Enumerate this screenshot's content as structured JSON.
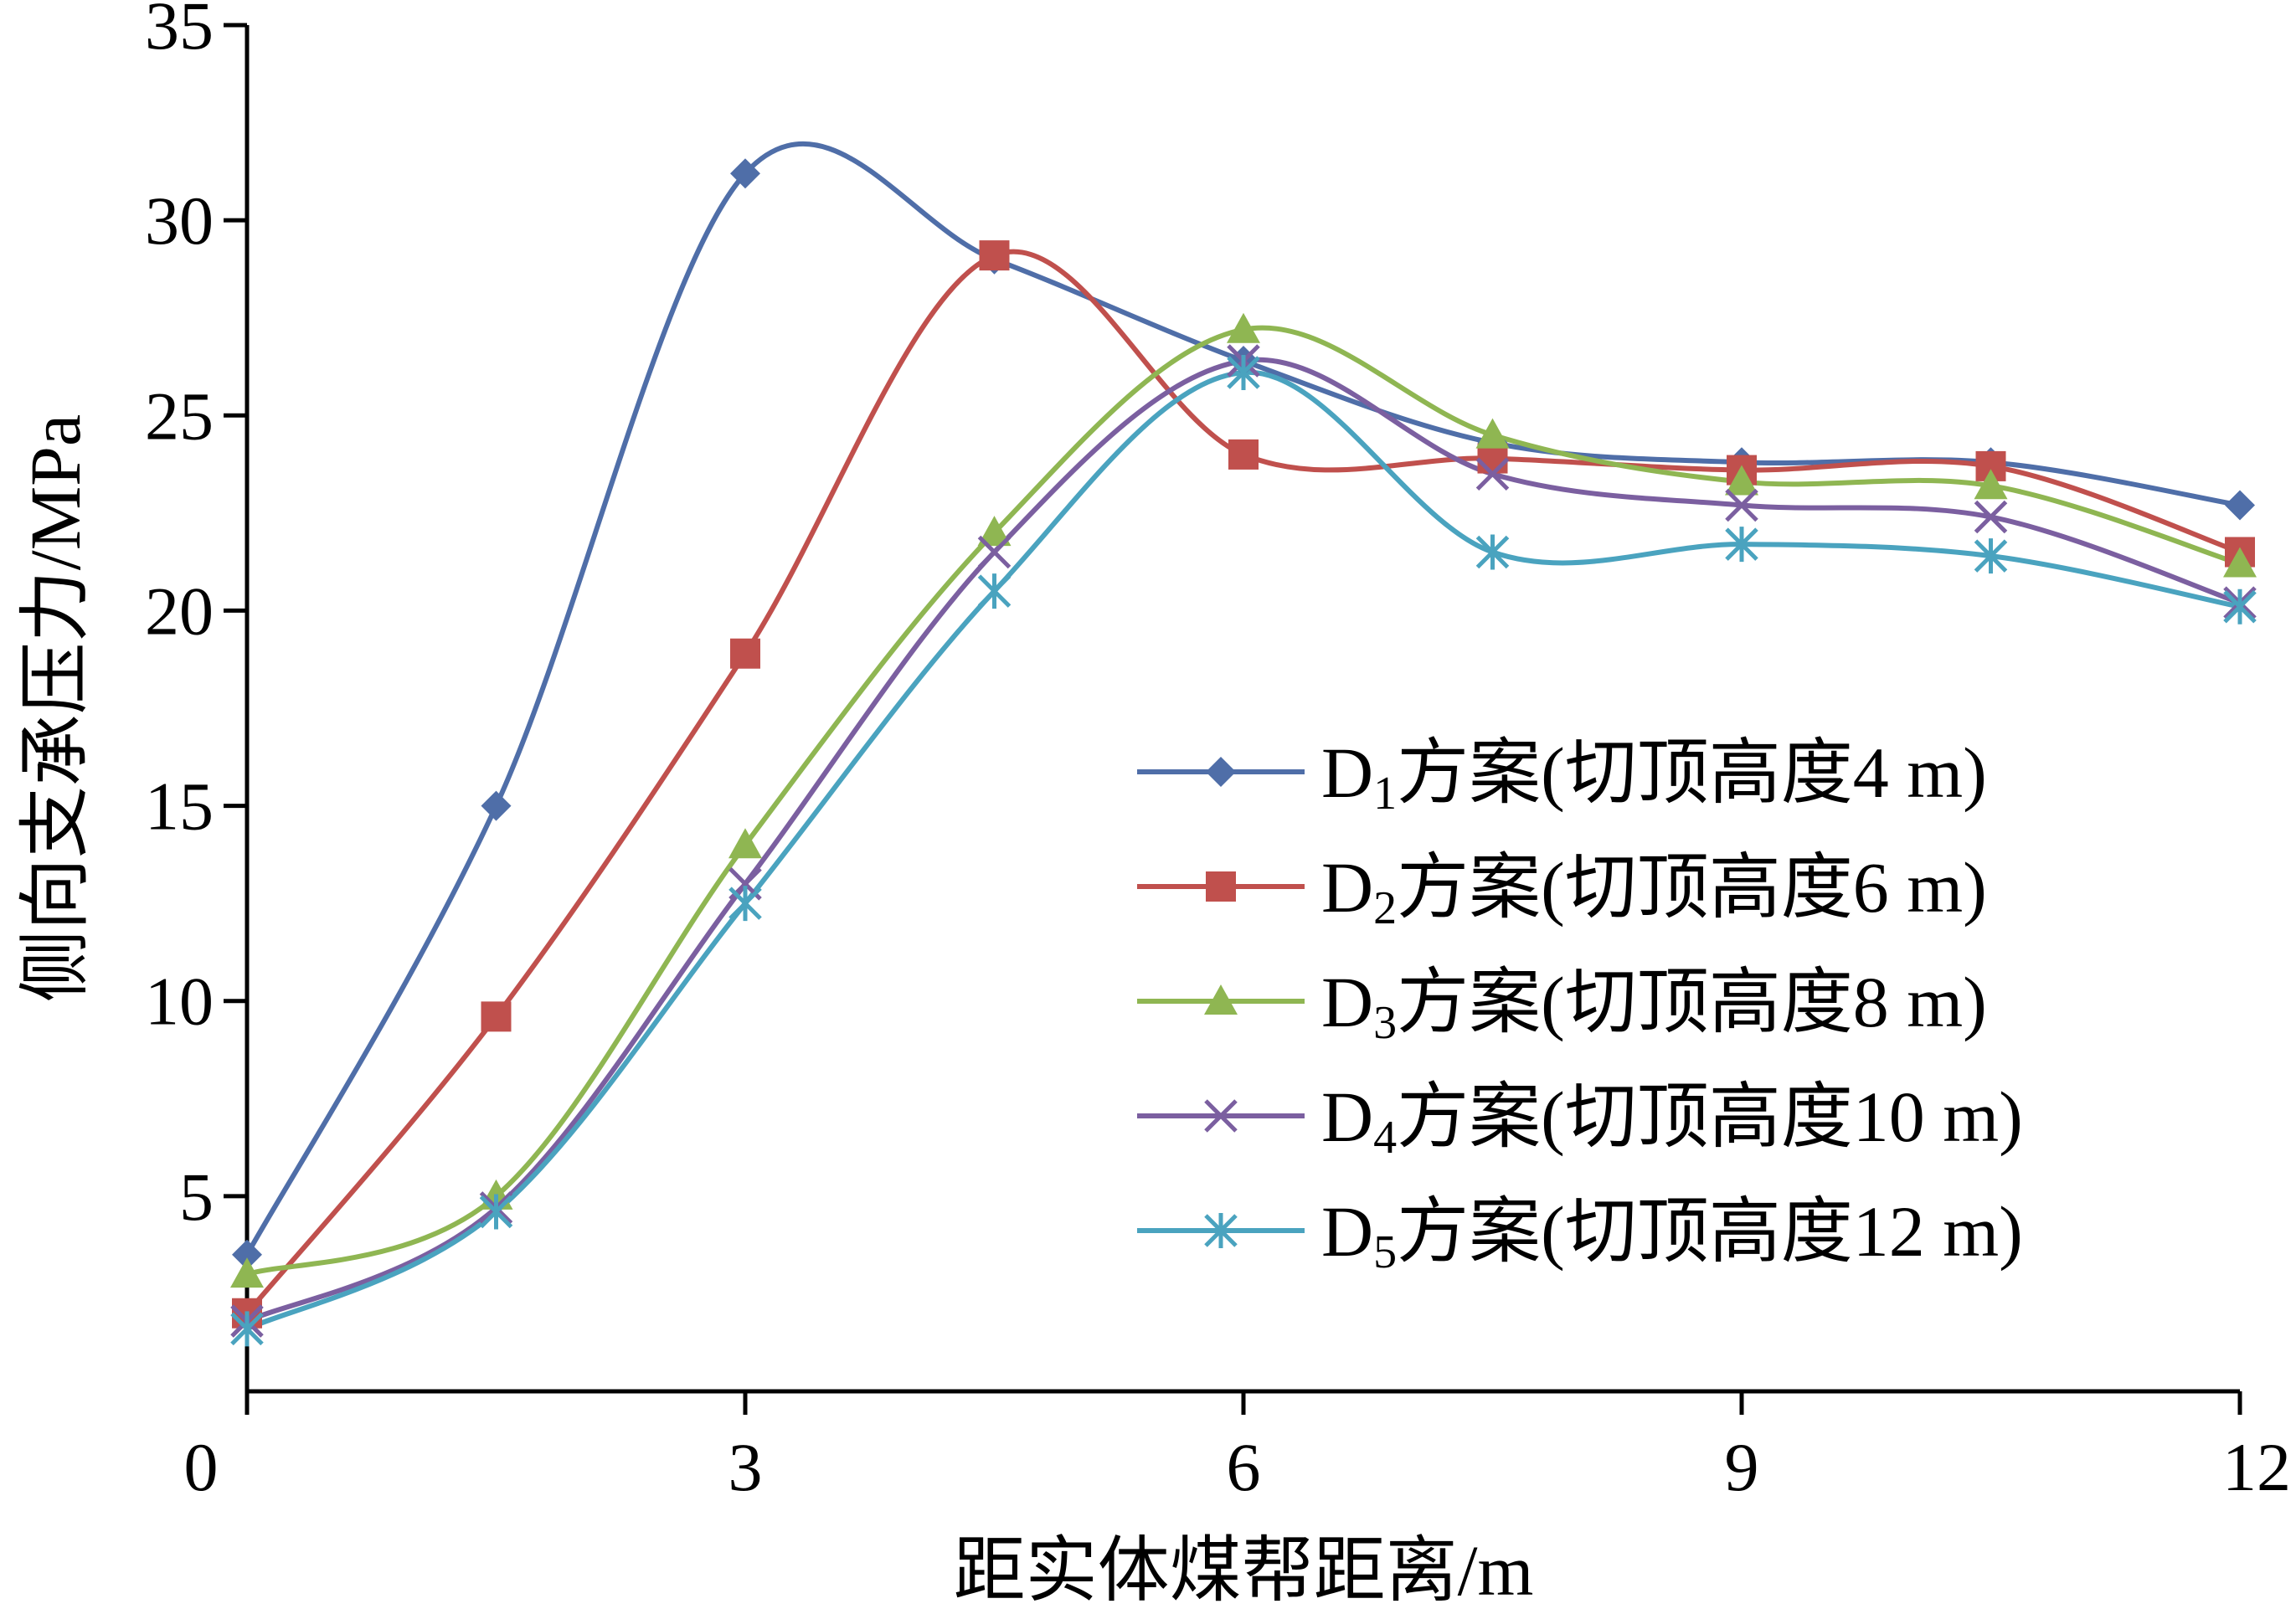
{
  "chart_data": {
    "type": "line",
    "xlabel": "距实体煤帮距离/m",
    "ylabel": "侧向支承压力/MPa",
    "xlim": [
      0,
      12
    ],
    "ylim": [
      0,
      35
    ],
    "x_ticks": [
      0,
      3,
      6,
      9,
      12
    ],
    "y_ticks": [
      5,
      10,
      15,
      20,
      25,
      30,
      35
    ],
    "x_tick_labels": [
      "0",
      "3",
      "6",
      "9",
      "12"
    ],
    "y_tick_labels": [
      "5",
      "10",
      "15",
      "20",
      "25",
      "30",
      "35"
    ],
    "legend_position": "lower-right",
    "grid": false,
    "smooth": true,
    "x": [
      0,
      1.5,
      3,
      4.5,
      6,
      7.5,
      9,
      10.5,
      12
    ],
    "series": [
      {
        "name": "D1方案(切顶高度4 m)",
        "name_prefix": "D",
        "name_sub": "1",
        "name_suffix": "方案(切顶高度4 m)",
        "color": "#4f6ea8",
        "marker": "diamond",
        "values": [
          3.5,
          15.0,
          31.2,
          29.0,
          26.4,
          24.3,
          23.8,
          23.8,
          22.7
        ]
      },
      {
        "name": "D2方案(切顶高度6 m)",
        "name_prefix": "D",
        "name_sub": "2",
        "name_suffix": "方案(切顶高度6 m)",
        "color": "#c0504d",
        "marker": "square",
        "values": [
          2.0,
          9.6,
          18.9,
          29.1,
          24.0,
          23.9,
          23.6,
          23.7,
          21.5
        ]
      },
      {
        "name": "D3方案(切顶高度8 m)",
        "name_prefix": "D",
        "name_sub": "3",
        "name_suffix": "方案(切顶高度8 m)",
        "color": "#8fb652",
        "marker": "triangle",
        "values": [
          3.0,
          5.0,
          14.0,
          22.0,
          27.2,
          24.5,
          23.3,
          23.2,
          21.2
        ]
      },
      {
        "name": "D4方案(切顶高度10 m)",
        "name_prefix": "D",
        "name_sub": "4",
        "name_suffix": "方案(切顶高度10 m)",
        "color": "#7b5fa0",
        "marker": "x",
        "values": [
          1.8,
          4.7,
          13.0,
          21.5,
          26.4,
          23.5,
          22.7,
          22.4,
          20.2
        ]
      },
      {
        "name": "D5方案(切顶高度12 m)",
        "name_prefix": "D",
        "name_sub": "5",
        "name_suffix": "方案(切顶高度12 m)",
        "color": "#4aa3bf",
        "marker": "asterisk",
        "values": [
          1.6,
          4.6,
          12.5,
          20.5,
          26.1,
          21.5,
          21.7,
          21.4,
          20.1
        ]
      }
    ]
  }
}
